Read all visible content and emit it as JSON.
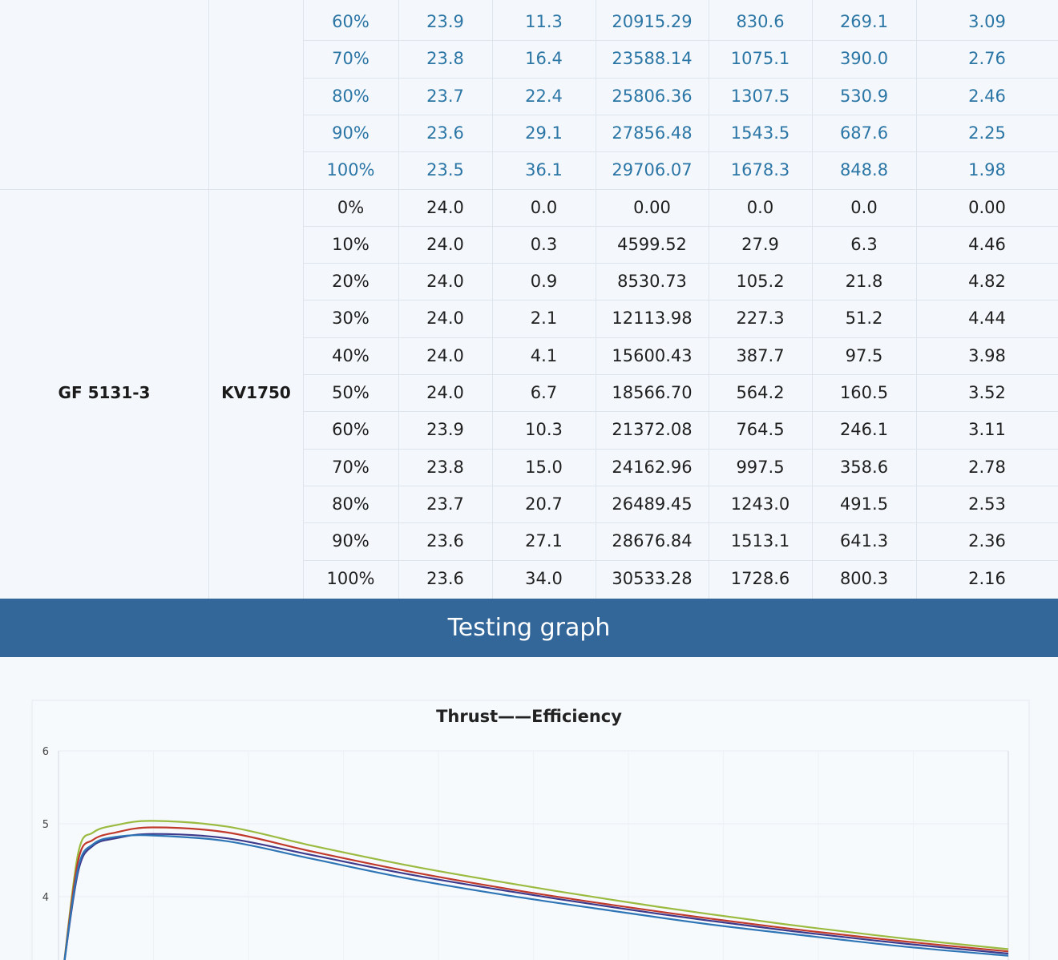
{
  "table": {
    "group2": {
      "model": "GF 5131-3",
      "kv": "KV1750"
    },
    "rows_blue": [
      [
        "60%",
        "23.9",
        "11.3",
        "20915.29",
        "830.6",
        "269.1",
        "3.09"
      ],
      [
        "70%",
        "23.8",
        "16.4",
        "23588.14",
        "1075.1",
        "390.0",
        "2.76"
      ],
      [
        "80%",
        "23.7",
        "22.4",
        "25806.36",
        "1307.5",
        "530.9",
        "2.46"
      ],
      [
        "90%",
        "23.6",
        "29.1",
        "27856.48",
        "1543.5",
        "687.6",
        "2.25"
      ],
      [
        "100%",
        "23.5",
        "36.1",
        "29706.07",
        "1678.3",
        "848.8",
        "1.98"
      ]
    ],
    "rows_black": [
      [
        "0%",
        "24.0",
        "0.0",
        "0.00",
        "0.0",
        "0.0",
        "0.00"
      ],
      [
        "10%",
        "24.0",
        "0.3",
        "4599.52",
        "27.9",
        "6.3",
        "4.46"
      ],
      [
        "20%",
        "24.0",
        "0.9",
        "8530.73",
        "105.2",
        "21.8",
        "4.82"
      ],
      [
        "30%",
        "24.0",
        "2.1",
        "12113.98",
        "227.3",
        "51.2",
        "4.44"
      ],
      [
        "40%",
        "24.0",
        "4.1",
        "15600.43",
        "387.7",
        "97.5",
        "3.98"
      ],
      [
        "50%",
        "24.0",
        "6.7",
        "18566.70",
        "564.2",
        "160.5",
        "3.52"
      ],
      [
        "60%",
        "23.9",
        "10.3",
        "21372.08",
        "764.5",
        "246.1",
        "3.11"
      ],
      [
        "70%",
        "23.8",
        "15.0",
        "24162.96",
        "997.5",
        "358.6",
        "2.78"
      ],
      [
        "80%",
        "23.7",
        "20.7",
        "26489.45",
        "1243.0",
        "491.5",
        "2.53"
      ],
      [
        "90%",
        "23.6",
        "27.1",
        "28676.84",
        "1513.1",
        "641.3",
        "2.36"
      ],
      [
        "100%",
        "23.6",
        "34.0",
        "30533.28",
        "1728.6",
        "800.3",
        "2.16"
      ]
    ]
  },
  "banner": {
    "title": "Testing graph"
  },
  "colors": {
    "banner": "#33679a",
    "blue_text": "#2c76a6"
  },
  "chart_data": {
    "type": "line",
    "title": "Thrust——Efficiency",
    "xlabel": "",
    "ylabel": "",
    "ylim": [
      3,
      6
    ],
    "yticks": [
      "6",
      "5",
      "4"
    ],
    "grid": true,
    "series": [
      {
        "color": "#9abb3f",
        "x": [
          0,
          30,
          60,
          105,
          180,
          330,
          500,
          700,
          900,
          1100,
          1300,
          1500,
          1700,
          1900
        ],
        "values": [
          3.0,
          4.6,
          4.88,
          4.98,
          5.04,
          4.96,
          4.7,
          4.42,
          4.18,
          3.96,
          3.76,
          3.58,
          3.42,
          3.28
        ]
      },
      {
        "color": "#c0392b",
        "x": [
          0,
          30,
          60,
          105,
          180,
          330,
          500,
          700,
          900,
          1100,
          1300,
          1500,
          1700,
          1900
        ],
        "values": [
          3.0,
          4.5,
          4.78,
          4.88,
          4.95,
          4.88,
          4.62,
          4.34,
          4.1,
          3.89,
          3.7,
          3.53,
          3.38,
          3.25
        ]
      },
      {
        "color": "#3d3a8c",
        "x": [
          0,
          30,
          60,
          105,
          180,
          330,
          500,
          700,
          900,
          1100,
          1300,
          1500,
          1700,
          1900
        ],
        "values": [
          3.0,
          4.35,
          4.7,
          4.8,
          4.86,
          4.8,
          4.57,
          4.3,
          4.07,
          3.86,
          3.67,
          3.5,
          3.35,
          3.22
        ]
      },
      {
        "color": "#2e75b6",
        "x": [
          0,
          30,
          60,
          105,
          180,
          330,
          500,
          700,
          900,
          1100,
          1300,
          1500,
          1700,
          1900
        ],
        "values": [
          3.0,
          4.4,
          4.72,
          4.82,
          4.84,
          4.76,
          4.52,
          4.24,
          4.01,
          3.81,
          3.62,
          3.46,
          3.31,
          3.19
        ]
      }
    ]
  }
}
